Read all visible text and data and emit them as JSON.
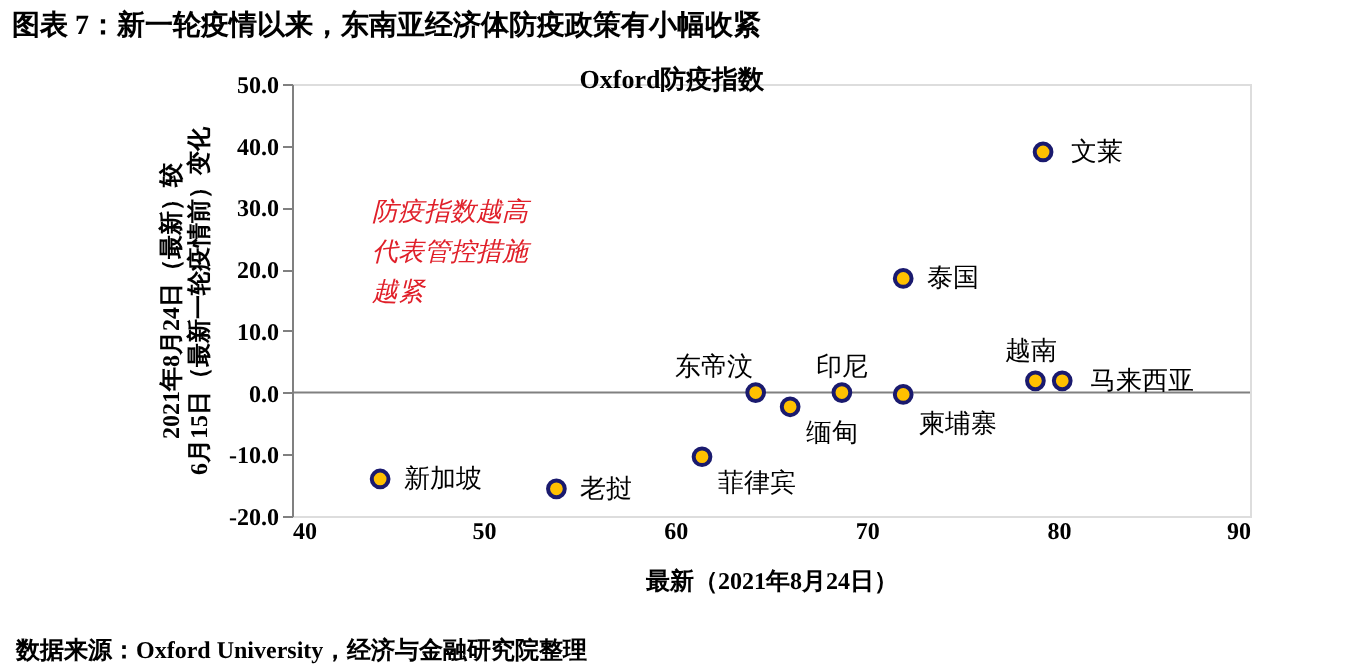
{
  "chart_data": {
    "type": "scatter",
    "title": "图表 7：新一轮疫情以来，东南亚经济体防疫政策有小幅收紧",
    "subtitle": "Oxford防疫指数",
    "xlabel": "最新（2021年8月24日）",
    "ylabel": "2021年8月24日（最新）较\n6月15日（最新一轮疫情前）变化",
    "series": [
      {
        "color": "#ffc000",
        "x": [
          44.6,
          53.8,
          61.4,
          64.2,
          66.0,
          68.7,
          71.9,
          71.9,
          79.2,
          78.8,
          80.2
        ],
        "values": [
          -14.0,
          -15.6,
          -10.4,
          0.0,
          -2.3,
          0.0,
          -0.3,
          18.5,
          39.0,
          1.9,
          1.9
        ]
      }
    ],
    "marker": "circle",
    "grid": false,
    "xlim": [
      40,
      90
    ],
    "xticks": [
      40,
      50,
      60,
      70,
      80,
      90
    ],
    "ylim": [
      -20,
      50
    ],
    "yticks": [
      {
        "value": -20,
        "label": "-20.0"
      },
      {
        "value": -10,
        "label": "-10.0"
      },
      {
        "value": 0,
        "label": "0.0"
      },
      {
        "value": 10,
        "label": "10.0"
      },
      {
        "value": 20,
        "label": "20.0"
      },
      {
        "value": 30,
        "label": "30.0"
      },
      {
        "value": 40,
        "label": "40.0"
      },
      {
        "value": 50,
        "label": "50.0"
      }
    ],
    "ref_lines": [
      {
        "axis": "y",
        "value": 0,
        "color": "#808080"
      }
    ],
    "annotations": [
      {
        "text": "新加坡",
        "x": 44.6,
        "y": -14.0
      },
      {
        "text": "老挝",
        "x": 53.8,
        "y": -15.6
      },
      {
        "text": "菲律宾",
        "x": 61.4,
        "y": -10.4
      },
      {
        "text": "东帝汶",
        "x": 64.2,
        "y": 0.0
      },
      {
        "text": "缅甸",
        "x": 66.0,
        "y": -2.3
      },
      {
        "text": "印尼",
        "x": 68.7,
        "y": 0.0
      },
      {
        "text": "柬埔寨",
        "x": 71.9,
        "y": -0.3
      },
      {
        "text": "泰国",
        "x": 71.9,
        "y": 18.5
      },
      {
        "text": "文莱",
        "x": 79.2,
        "y": 39.0
      },
      {
        "text": "越南",
        "x": 78.8,
        "y": 1.9
      },
      {
        "text": "马来西亚",
        "x": 80.2,
        "y": 1.9
      },
      "防疫指数越高代表管控措施越紧",
      "数据来源：Oxford University，经济与金融研究院整理"
    ]
  }
}
